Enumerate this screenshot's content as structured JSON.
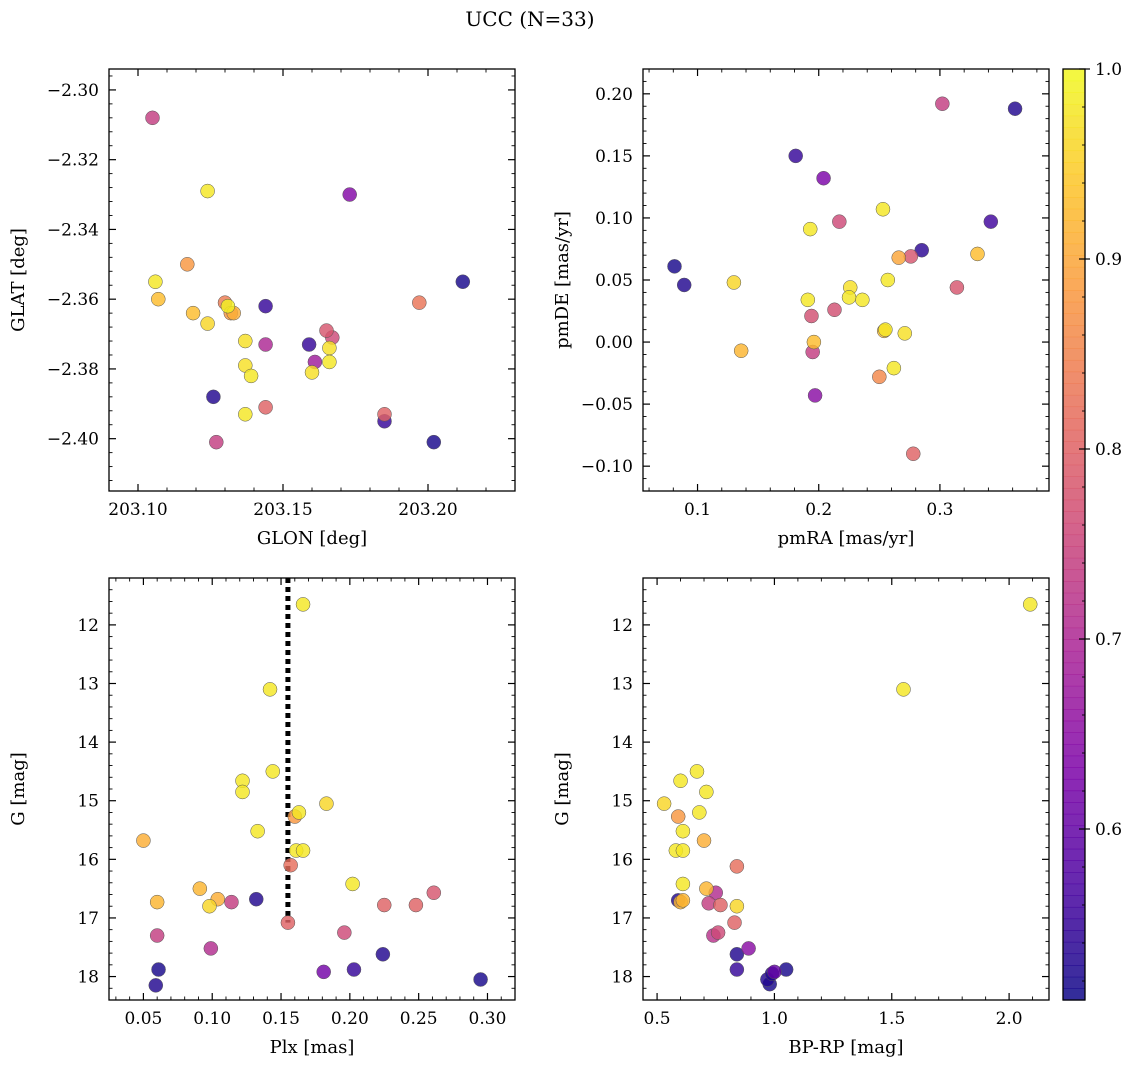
{
  "figure": {
    "title": "UCC (N=33)"
  },
  "colors": {
    "point_edge": "#555555",
    "vline": "#000000"
  },
  "colorbar": {
    "colormap": "plasma",
    "vmin": 0.51,
    "vmax": 1.0,
    "ticks": [
      0.6,
      0.7,
      0.8,
      0.9,
      1.0
    ],
    "tick_labels": [
      "0.6",
      "0.7",
      "0.8",
      "0.9",
      "1.0"
    ]
  },
  "chart_data": [
    {
      "type": "scatter",
      "xlabel": "GLON [deg]",
      "ylabel": "GLAT [deg]",
      "xlim": [
        203.09,
        203.23
      ],
      "ylim": [
        -2.415,
        -2.294
      ],
      "y_inverted": false,
      "xticks": [
        203.1,
        203.15,
        203.2
      ],
      "xtick_labels": [
        "203.10",
        "203.15",
        "203.20"
      ],
      "yticks": [
        -2.4,
        -2.38,
        -2.36,
        -2.34,
        -2.32,
        -2.3
      ],
      "ytick_labels": [
        "−2.40",
        "−2.38",
        "−2.36",
        "−2.34",
        "−2.32",
        "−2.30"
      ],
      "points": [
        {
          "x": 203.105,
          "y": -2.308,
          "c": 0.74
        },
        {
          "x": 203.124,
          "y": -2.329,
          "c": 0.98
        },
        {
          "x": 203.173,
          "y": -2.33,
          "c": 0.64
        },
        {
          "x": 203.106,
          "y": -2.355,
          "c": 0.98
        },
        {
          "x": 203.117,
          "y": -2.35,
          "c": 0.88
        },
        {
          "x": 203.107,
          "y": -2.36,
          "c": 0.93
        },
        {
          "x": 203.212,
          "y": -2.355,
          "c": 0.52
        },
        {
          "x": 203.197,
          "y": -2.361,
          "c": 0.83
        },
        {
          "x": 203.119,
          "y": -2.364,
          "c": 0.93
        },
        {
          "x": 203.124,
          "y": -2.367,
          "c": 0.96
        },
        {
          "x": 203.13,
          "y": -2.361,
          "c": 0.84
        },
        {
          "x": 203.132,
          "y": -2.364,
          "c": 0.88
        },
        {
          "x": 203.133,
          "y": -2.364,
          "c": 0.91
        },
        {
          "x": 203.131,
          "y": -2.362,
          "c": 0.99
        },
        {
          "x": 203.144,
          "y": -2.362,
          "c": 0.55
        },
        {
          "x": 203.137,
          "y": -2.372,
          "c": 0.97
        },
        {
          "x": 203.144,
          "y": -2.373,
          "c": 0.7
        },
        {
          "x": 203.159,
          "y": -2.373,
          "c": 0.55
        },
        {
          "x": 203.165,
          "y": -2.369,
          "c": 0.78
        },
        {
          "x": 203.167,
          "y": -2.371,
          "c": 0.76
        },
        {
          "x": 203.166,
          "y": -2.374,
          "c": 0.97
        },
        {
          "x": 203.161,
          "y": -2.378,
          "c": 0.68
        },
        {
          "x": 203.166,
          "y": -2.378,
          "c": 0.98
        },
        {
          "x": 203.137,
          "y": -2.379,
          "c": 0.97
        },
        {
          "x": 203.16,
          "y": -2.381,
          "c": 0.97
        },
        {
          "x": 203.139,
          "y": -2.382,
          "c": 0.98
        },
        {
          "x": 203.126,
          "y": -2.388,
          "c": 0.53
        },
        {
          "x": 203.144,
          "y": -2.391,
          "c": 0.8
        },
        {
          "x": 203.137,
          "y": -2.393,
          "c": 0.98
        },
        {
          "x": 203.185,
          "y": -2.393,
          "c": 0.8
        },
        {
          "x": 203.185,
          "y": -2.395,
          "c": 0.55
        },
        {
          "x": 203.127,
          "y": -2.401,
          "c": 0.74
        },
        {
          "x": 203.202,
          "y": -2.401,
          "c": 0.52
        }
      ]
    },
    {
      "type": "scatter",
      "xlabel": "pmRA [mas/yr]",
      "ylabel": "pmDE [mas/yr]",
      "xlim": [
        0.055,
        0.39
      ],
      "ylim": [
        -0.12,
        0.22
      ],
      "y_inverted": false,
      "xticks": [
        0.1,
        0.2,
        0.3
      ],
      "xtick_labels": [
        "0.1",
        "0.2",
        "0.3"
      ],
      "yticks": [
        -0.1,
        -0.05,
        0.0,
        0.05,
        0.1,
        0.15,
        0.2
      ],
      "ytick_labels": [
        "−0.10",
        "−0.05",
        "0.00",
        "0.05",
        "0.10",
        "0.15",
        "0.20"
      ],
      "points": [
        {
          "x": 0.302,
          "y": 0.192,
          "c": 0.74
        },
        {
          "x": 0.362,
          "y": 0.188,
          "c": 0.53
        },
        {
          "x": 0.181,
          "y": 0.15,
          "c": 0.55
        },
        {
          "x": 0.204,
          "y": 0.132,
          "c": 0.63
        },
        {
          "x": 0.253,
          "y": 0.107,
          "c": 0.98
        },
        {
          "x": 0.217,
          "y": 0.097,
          "c": 0.76
        },
        {
          "x": 0.342,
          "y": 0.097,
          "c": 0.56
        },
        {
          "x": 0.193,
          "y": 0.091,
          "c": 0.98
        },
        {
          "x": 0.285,
          "y": 0.074,
          "c": 0.54
        },
        {
          "x": 0.331,
          "y": 0.071,
          "c": 0.93
        },
        {
          "x": 0.266,
          "y": 0.068,
          "c": 0.9
        },
        {
          "x": 0.276,
          "y": 0.069,
          "c": 0.78
        },
        {
          "x": 0.081,
          "y": 0.061,
          "c": 0.52
        },
        {
          "x": 0.089,
          "y": 0.046,
          "c": 0.53
        },
        {
          "x": 0.13,
          "y": 0.048,
          "c": 0.96
        },
        {
          "x": 0.257,
          "y": 0.05,
          "c": 0.98
        },
        {
          "x": 0.226,
          "y": 0.044,
          "c": 0.97
        },
        {
          "x": 0.314,
          "y": 0.044,
          "c": 0.78
        },
        {
          "x": 0.191,
          "y": 0.034,
          "c": 0.98
        },
        {
          "x": 0.236,
          "y": 0.034,
          "c": 0.98
        },
        {
          "x": 0.225,
          "y": 0.036,
          "c": 0.98
        },
        {
          "x": 0.213,
          "y": 0.026,
          "c": 0.77
        },
        {
          "x": 0.194,
          "y": 0.021,
          "c": 0.77
        },
        {
          "x": 0.254,
          "y": 0.009,
          "c": 0.93
        },
        {
          "x": 0.255,
          "y": 0.01,
          "c": 0.98
        },
        {
          "x": 0.271,
          "y": 0.007,
          "c": 0.97
        },
        {
          "x": 0.196,
          "y": 0.0,
          "c": 0.93
        },
        {
          "x": 0.195,
          "y": -0.008,
          "c": 0.74
        },
        {
          "x": 0.136,
          "y": -0.007,
          "c": 0.92
        },
        {
          "x": 0.262,
          "y": -0.021,
          "c": 0.98
        },
        {
          "x": 0.25,
          "y": -0.028,
          "c": 0.86
        },
        {
          "x": 0.197,
          "y": -0.043,
          "c": 0.65
        },
        {
          "x": 0.278,
          "y": -0.09,
          "c": 0.8
        }
      ]
    },
    {
      "type": "scatter",
      "xlabel": "Plx [mas]",
      "ylabel": "G [mag]",
      "xlim": [
        0.025,
        0.32
      ],
      "ylim": [
        18.4,
        11.2
      ],
      "y_inverted": true,
      "xticks": [
        0.05,
        0.1,
        0.15,
        0.2,
        0.25,
        0.3
      ],
      "xtick_labels": [
        "0.05",
        "0.10",
        "0.15",
        "0.20",
        "0.25",
        "0.30"
      ],
      "yticks": [
        12,
        13,
        14,
        15,
        16,
        17,
        18
      ],
      "ytick_labels": [
        "12",
        "13",
        "14",
        "15",
        "16",
        "17",
        "18"
      ],
      "vline": {
        "x": 0.155,
        "style": "dotted"
      },
      "points": [
        {
          "x": 0.166,
          "y": 11.65,
          "c": 0.98
        },
        {
          "x": 0.142,
          "y": 13.1,
          "c": 0.98
        },
        {
          "x": 0.144,
          "y": 14.5,
          "c": 0.98
        },
        {
          "x": 0.122,
          "y": 14.66,
          "c": 0.98
        },
        {
          "x": 0.122,
          "y": 14.85,
          "c": 0.98
        },
        {
          "x": 0.183,
          "y": 15.05,
          "c": 0.96
        },
        {
          "x": 0.163,
          "y": 15.2,
          "c": 0.98
        },
        {
          "x": 0.16,
          "y": 15.27,
          "c": 0.88
        },
        {
          "x": 0.133,
          "y": 15.52,
          "c": 0.98
        },
        {
          "x": 0.05,
          "y": 15.68,
          "c": 0.91
        },
        {
          "x": 0.161,
          "y": 15.85,
          "c": 0.98
        },
        {
          "x": 0.166,
          "y": 15.85,
          "c": 0.98
        },
        {
          "x": 0.157,
          "y": 16.1,
          "c": 0.82
        },
        {
          "x": 0.202,
          "y": 16.42,
          "c": 0.98
        },
        {
          "x": 0.091,
          "y": 16.5,
          "c": 0.92
        },
        {
          "x": 0.261,
          "y": 16.57,
          "c": 0.78
        },
        {
          "x": 0.104,
          "y": 16.68,
          "c": 0.91
        },
        {
          "x": 0.06,
          "y": 16.73,
          "c": 0.92
        },
        {
          "x": 0.132,
          "y": 16.68,
          "c": 0.53
        },
        {
          "x": 0.114,
          "y": 16.73,
          "c": 0.74
        },
        {
          "x": 0.098,
          "y": 16.8,
          "c": 0.96
        },
        {
          "x": 0.225,
          "y": 16.78,
          "c": 0.8
        },
        {
          "x": 0.248,
          "y": 16.78,
          "c": 0.8
        },
        {
          "x": 0.155,
          "y": 17.08,
          "c": 0.8
        },
        {
          "x": 0.196,
          "y": 17.25,
          "c": 0.76
        },
        {
          "x": 0.06,
          "y": 17.3,
          "c": 0.74
        },
        {
          "x": 0.099,
          "y": 17.52,
          "c": 0.71
        },
        {
          "x": 0.224,
          "y": 17.62,
          "c": 0.53
        },
        {
          "x": 0.061,
          "y": 17.88,
          "c": 0.52
        },
        {
          "x": 0.181,
          "y": 17.92,
          "c": 0.62
        },
        {
          "x": 0.203,
          "y": 17.88,
          "c": 0.55
        },
        {
          "x": 0.295,
          "y": 18.05,
          "c": 0.52
        },
        {
          "x": 0.059,
          "y": 18.15,
          "c": 0.53
        }
      ]
    },
    {
      "type": "scatter",
      "xlabel": "BP-RP [mag]",
      "ylabel": "G [mag]",
      "xlim": [
        0.44,
        2.17
      ],
      "ylim": [
        18.4,
        11.2
      ],
      "y_inverted": true,
      "xticks": [
        0.5,
        1.0,
        1.5,
        2.0
      ],
      "xtick_labels": [
        "0.5",
        "1.0",
        "1.5",
        "2.0"
      ],
      "yticks": [
        12,
        13,
        14,
        15,
        16,
        17,
        18
      ],
      "ytick_labels": [
        "12",
        "13",
        "14",
        "15",
        "16",
        "17",
        "18"
      ],
      "points": [
        {
          "x": 2.09,
          "y": 11.65,
          "c": 0.98
        },
        {
          "x": 1.55,
          "y": 13.1,
          "c": 0.98
        },
        {
          "x": 0.67,
          "y": 14.5,
          "c": 0.98
        },
        {
          "x": 0.6,
          "y": 14.66,
          "c": 0.98
        },
        {
          "x": 0.71,
          "y": 14.85,
          "c": 0.98
        },
        {
          "x": 0.53,
          "y": 15.05,
          "c": 0.96
        },
        {
          "x": 0.68,
          "y": 15.2,
          "c": 0.98
        },
        {
          "x": 0.59,
          "y": 15.27,
          "c": 0.88
        },
        {
          "x": 0.61,
          "y": 15.52,
          "c": 0.98
        },
        {
          "x": 0.7,
          "y": 15.68,
          "c": 0.91
        },
        {
          "x": 0.58,
          "y": 15.85,
          "c": 0.98
        },
        {
          "x": 0.61,
          "y": 15.85,
          "c": 0.98
        },
        {
          "x": 0.84,
          "y": 16.12,
          "c": 0.82
        },
        {
          "x": 0.61,
          "y": 16.42,
          "c": 0.98
        },
        {
          "x": 0.71,
          "y": 16.5,
          "c": 0.92
        },
        {
          "x": 0.75,
          "y": 16.57,
          "c": 0.71
        },
        {
          "x": 0.59,
          "y": 16.7,
          "c": 0.53
        },
        {
          "x": 0.6,
          "y": 16.73,
          "c": 0.92
        },
        {
          "x": 0.61,
          "y": 16.7,
          "c": 0.92
        },
        {
          "x": 0.72,
          "y": 16.75,
          "c": 0.74
        },
        {
          "x": 0.77,
          "y": 16.78,
          "c": 0.8
        },
        {
          "x": 0.84,
          "y": 16.8,
          "c": 0.96
        },
        {
          "x": 0.83,
          "y": 17.08,
          "c": 0.8
        },
        {
          "x": 0.76,
          "y": 17.25,
          "c": 0.76
        },
        {
          "x": 0.74,
          "y": 17.3,
          "c": 0.72
        },
        {
          "x": 0.89,
          "y": 17.52,
          "c": 0.65
        },
        {
          "x": 0.84,
          "y": 17.62,
          "c": 0.53
        },
        {
          "x": 0.84,
          "y": 17.88,
          "c": 0.55
        },
        {
          "x": 1.05,
          "y": 17.88,
          "c": 0.52
        },
        {
          "x": 1.0,
          "y": 17.92,
          "c": 0.6
        },
        {
          "x": 0.97,
          "y": 18.05,
          "c": 0.53
        },
        {
          "x": 0.98,
          "y": 18.13,
          "c": 0.52
        },
        {
          "x": 0.99,
          "y": 17.95,
          "c": 0.53
        }
      ]
    }
  ]
}
